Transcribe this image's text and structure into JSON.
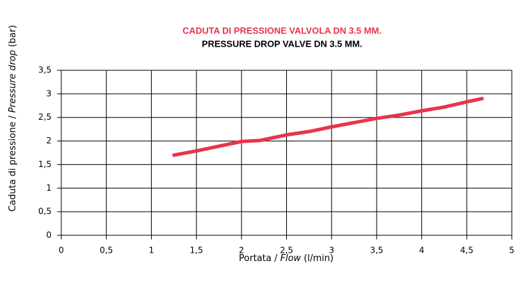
{
  "chart_data": {
    "type": "line",
    "title": "CADUTA DI PRESSIONE VALVOLA DN 3.5 MM.",
    "subtitle": "PRESSURE DROP VALVE DN 3.5 MM.",
    "title_color": "#e8344a",
    "x_label": [
      "Portata / ",
      "Flow",
      " (l/min)"
    ],
    "y_label": [
      "Caduta di pressione / ",
      "Pressure drop",
      "  (bar)"
    ],
    "x": [
      1.25,
      1.5,
      2,
      2.2,
      2.5,
      2.75,
      3,
      3.5,
      3.75,
      4,
      4.25,
      4.5,
      4.67
    ],
    "series": [
      {
        "name": "Pressure drop",
        "color": "#e8344a",
        "values": [
          1.7,
          1.79,
          1.99,
          2.01,
          2.13,
          2.2,
          2.3,
          2.48,
          2.55,
          2.64,
          2.72,
          2.83,
          2.9
        ]
      }
    ],
    "xlim": [
      0,
      5
    ],
    "ylim": [
      0,
      3.5
    ],
    "xticks": [
      0,
      {
        "value": 0.5,
        "label": "0,5"
      },
      1,
      {
        "value": 1.5,
        "label": "1,5"
      },
      2,
      {
        "value": 2.5,
        "label": "2,5"
      },
      3,
      {
        "value": 3.5,
        "label": "3,5"
      },
      4,
      {
        "value": 4.5,
        "label": "4,5"
      },
      5
    ],
    "yticks": [
      0,
      {
        "value": 0.5,
        "label": "0,5"
      },
      1,
      {
        "value": 1.5,
        "label": "1,5"
      },
      2,
      {
        "value": 2.5,
        "label": "2,5"
      },
      3,
      {
        "value": 3.5,
        "label": "3,5"
      }
    ],
    "grid": true
  }
}
